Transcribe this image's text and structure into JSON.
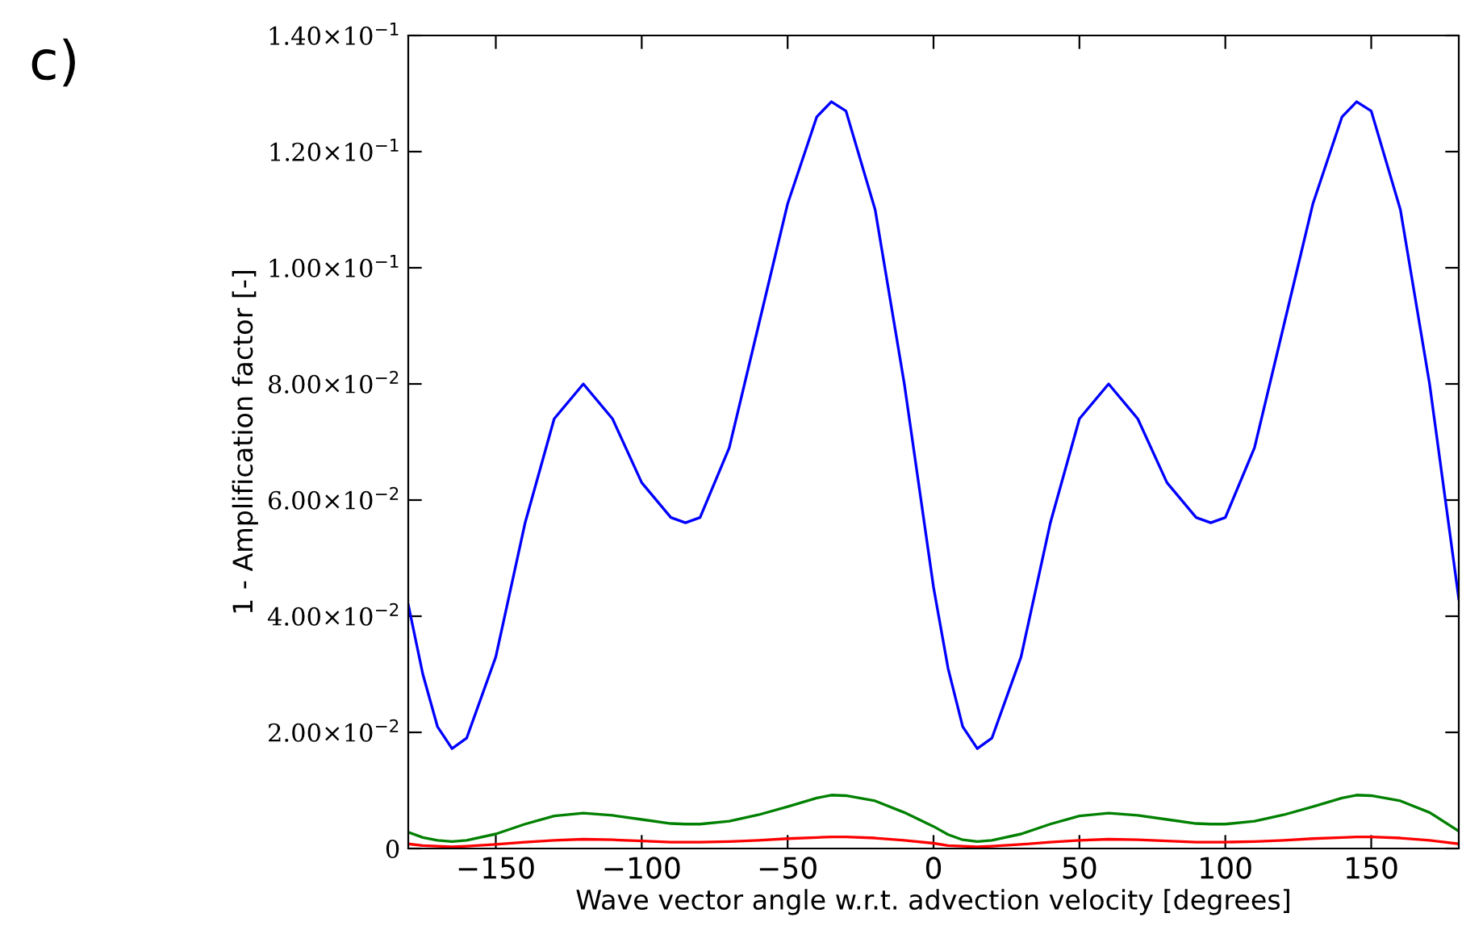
{
  "chart_data": {
    "type": "line",
    "xlabel": "Wave vector angle w.r.t. advection velocity [degrees]",
    "ylabel": "1 - Amplification factor [-]",
    "annotations": [
      "c)"
    ],
    "x": [
      -180,
      -175,
      -170,
      -165,
      -160,
      -150,
      -140,
      -130,
      -120,
      -110,
      -100,
      -90,
      -85,
      -80,
      -70,
      -60,
      -50,
      -40,
      -35,
      -30,
      -20,
      -10,
      0,
      5,
      10,
      15,
      20,
      30,
      40,
      50,
      60,
      70,
      80,
      90,
      95,
      100,
      110,
      120,
      130,
      140,
      145,
      150,
      160,
      170,
      180
    ],
    "series": [
      {
        "color": "#0000ff",
        "values": [
          0.042,
          0.03,
          0.021,
          0.0172,
          0.019,
          0.033,
          0.056,
          0.074,
          0.08,
          0.074,
          0.063,
          0.057,
          0.0561,
          0.057,
          0.069,
          0.09,
          0.111,
          0.126,
          0.1286,
          0.127,
          0.11,
          0.08,
          0.045,
          0.031,
          0.021,
          0.0172,
          0.019,
          0.033,
          0.056,
          0.074,
          0.08,
          0.074,
          0.063,
          0.057,
          0.0561,
          0.057,
          0.069,
          0.09,
          0.111,
          0.126,
          0.1286,
          0.127,
          0.11,
          0.08,
          0.043
        ]
      },
      {
        "color": "#008000",
        "values": [
          0.0028,
          0.0019,
          0.0014,
          0.0012,
          0.0014,
          0.0025,
          0.0042,
          0.0056,
          0.0061,
          0.0057,
          0.005,
          0.0043,
          0.0042,
          0.0042,
          0.0047,
          0.0058,
          0.0072,
          0.0087,
          0.0092,
          0.0091,
          0.0082,
          0.0062,
          0.0038,
          0.0024,
          0.0015,
          0.0012,
          0.0014,
          0.0025,
          0.0042,
          0.0056,
          0.0061,
          0.0057,
          0.005,
          0.0043,
          0.0042,
          0.0042,
          0.0047,
          0.0058,
          0.0072,
          0.0087,
          0.0092,
          0.0091,
          0.0082,
          0.0062,
          0.003
        ]
      },
      {
        "color": "#ff0000",
        "values": [
          0.0008,
          0.0005,
          0.0004,
          0.0003,
          0.0004,
          0.0007,
          0.0011,
          0.0014,
          0.0016,
          0.0015,
          0.0013,
          0.0011,
          0.0011,
          0.0011,
          0.0012,
          0.0014,
          0.0017,
          0.0019,
          0.002,
          0.002,
          0.0018,
          0.0014,
          0.0009,
          0.0005,
          0.0004,
          0.0003,
          0.0004,
          0.0007,
          0.0011,
          0.0014,
          0.0016,
          0.0015,
          0.0013,
          0.0011,
          0.0011,
          0.0011,
          0.0012,
          0.0014,
          0.0017,
          0.0019,
          0.002,
          0.002,
          0.0018,
          0.0014,
          0.0008
        ]
      }
    ],
    "xlim": [
      -180,
      180
    ],
    "xticks": [
      {
        "value": -150,
        "label": "−150"
      },
      {
        "value": -100,
        "label": "−100"
      },
      {
        "value": -50,
        "label": "−50"
      },
      0,
      50,
      100,
      150
    ],
    "ylim": [
      0,
      0.14
    ],
    "yticks": [
      0,
      {
        "value": 0.02,
        "label": "2.00×10$^{−2}$"
      },
      {
        "value": 0.04,
        "label": "4.00×10$^{−2}$"
      },
      {
        "value": 0.06,
        "label": "6.00×10$^{−2}$"
      },
      {
        "value": 0.08,
        "label": "8.00×10$^{−2}$"
      },
      {
        "value": 0.1,
        "label": "1.00×10$^{−1}$"
      },
      {
        "value": 0.12,
        "label": "1.20×10$^{−1}$"
      },
      {
        "value": 0.14,
        "label": "1.40×10$^{−1}$"
      }
    ],
    "grid": false,
    "legend": false
  }
}
